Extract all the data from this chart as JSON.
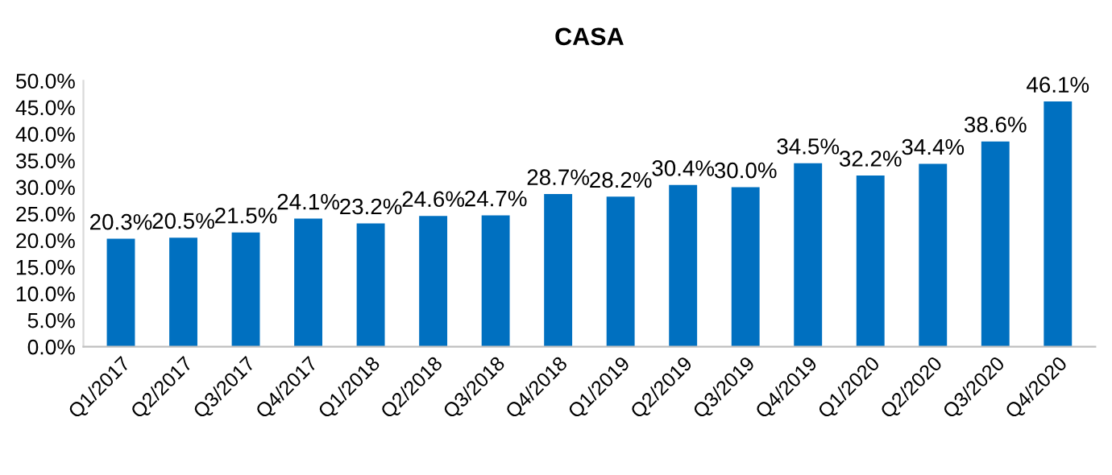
{
  "chart_data": {
    "type": "bar",
    "title": "CASA",
    "categories": [
      "Q1/2017",
      "Q2/2017",
      "Q3/2017",
      "Q4/2017",
      "Q1/2018",
      "Q2/2018",
      "Q3/2018",
      "Q4/2018",
      "Q1/2019",
      "Q2/2019",
      "Q3/2019",
      "Q4/2019",
      "Q1/2020",
      "Q2/2020",
      "Q3/2020",
      "Q4/2020"
    ],
    "values": [
      20.3,
      20.5,
      21.5,
      24.1,
      23.2,
      24.6,
      24.7,
      28.7,
      28.2,
      30.4,
      30.0,
      34.5,
      32.2,
      34.4,
      38.6,
      46.1
    ],
    "value_labels": [
      "20.3%",
      "20.5%",
      "21.5%",
      "24.1%",
      "23.2%",
      "24.6%",
      "24.7%",
      "28.7%",
      "28.2%",
      "30.4%",
      "30.0%",
      "34.5%",
      "32.2%",
      "34.4%",
      "38.6%",
      "46.1%"
    ],
    "color": "#0070c0",
    "ylim": [
      0,
      50
    ],
    "yticks": [
      {
        "value": 0,
        "label": "0.0%"
      },
      {
        "value": 5,
        "label": "5.0%"
      },
      {
        "value": 10,
        "label": "10.0%"
      },
      {
        "value": 15,
        "label": "15.0%"
      },
      {
        "value": 20,
        "label": "20.0%"
      },
      {
        "value": 25,
        "label": "25.0%"
      },
      {
        "value": 30,
        "label": "30.0%"
      },
      {
        "value": 35,
        "label": "35.0%"
      },
      {
        "value": 40,
        "label": "40.0%"
      },
      {
        "value": 45,
        "label": "45.0%"
      },
      {
        "value": 50,
        "label": "50.0%"
      }
    ],
    "grid": false,
    "legend": false
  }
}
